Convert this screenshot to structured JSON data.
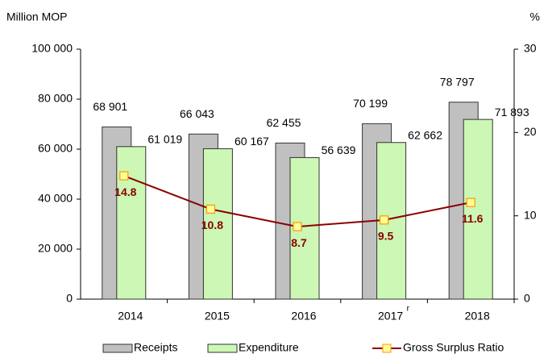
{
  "chart_data": {
    "type": "bar",
    "y_label": "Million MOP",
    "y2_label": "%",
    "categories": [
      "2014",
      "2015",
      "2016",
      "2017",
      "2018"
    ],
    "category_superscripts": [
      null,
      null,
      null,
      "r",
      null
    ],
    "series": [
      {
        "name": "Receipts",
        "type": "bar",
        "color": "#c0c0c0",
        "values": [
          68901,
          66043,
          62455,
          70199,
          78797
        ],
        "value_labels": [
          "68 901",
          "66 043",
          "62 455",
          "70 199",
          "78 797"
        ]
      },
      {
        "name": "Expenditure",
        "type": "bar",
        "color": "#ccf7b4",
        "values": [
          61019,
          60167,
          56639,
          62662,
          71893
        ],
        "value_labels": [
          "61 019",
          "60 167",
          "56 639",
          "62 662",
          "71 893"
        ]
      },
      {
        "name": "Gross Surplus Ratio",
        "type": "line",
        "axis": "y2",
        "color": "#8b0000",
        "marker_color": "#ffff99",
        "marker_edge": "#ff9900",
        "values": [
          14.8,
          10.8,
          8.7,
          9.5,
          11.6
        ]
      }
    ],
    "ylim": [
      0,
      100000
    ],
    "yticks": [
      0,
      {
        "value": 20000,
        "label": "20 000"
      },
      {
        "value": 40000,
        "label": "40 000"
      },
      {
        "value": 60000,
        "label": "60 000"
      },
      {
        "value": 80000,
        "label": "80 000"
      },
      {
        "value": 100000,
        "label": "100 000"
      }
    ],
    "y2lim": [
      0,
      30
    ],
    "y2ticks": [
      0,
      10,
      20,
      30
    ],
    "grid": false,
    "legend": "bottom"
  }
}
